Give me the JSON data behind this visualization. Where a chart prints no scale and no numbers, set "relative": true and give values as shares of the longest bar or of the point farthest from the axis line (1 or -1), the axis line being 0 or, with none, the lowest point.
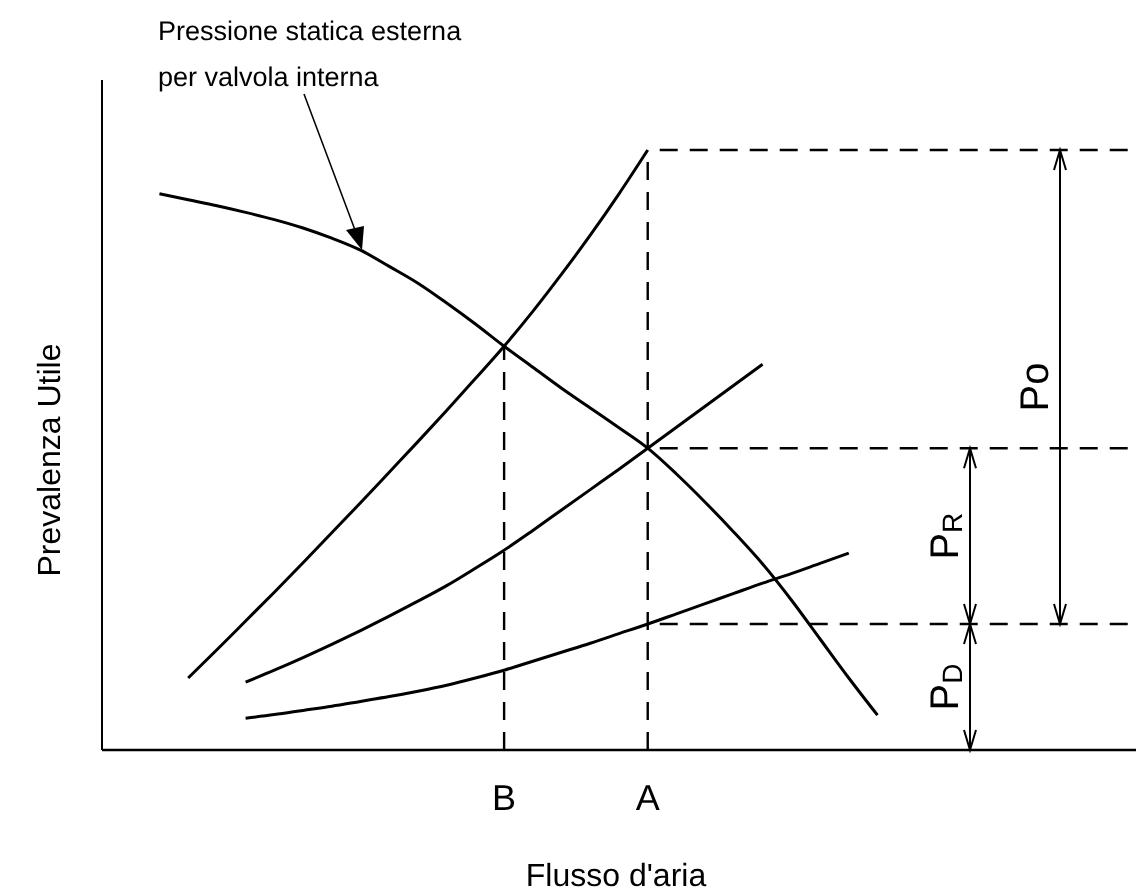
{
  "chart_data": {
    "type": "line",
    "relative": true,
    "xlabel": "Flusso d'aria",
    "ylabel": "Prevalenza Utile",
    "categories": [
      null,
      null,
      null,
      null,
      null,
      null,
      null,
      null,
      null,
      null,
      null,
      null,
      null,
      null,
      "B",
      null,
      null,
      null,
      null,
      "A",
      null,
      null,
      null,
      null,
      null,
      null,
      null,
      null,
      null,
      null,
      null,
      null,
      null,
      null,
      null,
      null,
      null
    ],
    "series": [
      {
        "color": "#000000",
        "values": [
          null,
          null,
          null,
          0.12,
          0.167,
          0.215,
          0.263,
          0.312,
          0.362,
          0.412,
          0.463,
          0.514,
          0.566,
          0.619,
          0.673,
          0.731,
          0.793,
          0.858,
          0.927,
          1.0,
          null,
          null,
          null,
          null,
          null,
          null,
          null,
          null,
          null,
          null,
          null,
          null,
          null,
          null,
          null,
          null,
          null
        ]
      },
      {
        "color": "#000000",
        "values": [
          null,
          null,
          null,
          null,
          null,
          0.113,
          0.133,
          0.154,
          0.176,
          0.199,
          0.223,
          0.248,
          0.274,
          0.303,
          0.333,
          0.366,
          0.4,
          0.434,
          0.468,
          0.503,
          0.538,
          0.573,
          0.608,
          0.643,
          null,
          null,
          null,
          null,
          null,
          null,
          null,
          null,
          null,
          null,
          null,
          null,
          null
        ]
      },
      {
        "color": "#000000",
        "values": [
          null,
          null,
          null,
          null,
          null,
          0.053,
          0.059,
          0.066,
          0.073,
          0.081,
          0.089,
          0.098,
          0.108,
          0.12,
          0.133,
          0.148,
          0.163,
          0.178,
          0.194,
          0.21,
          0.227,
          0.244,
          0.261,
          0.278,
          0.294,
          0.311,
          0.328,
          null,
          null,
          null,
          null,
          null,
          null,
          null,
          null,
          null,
          null
        ]
      },
      {
        "color": "#000000",
        "values": [
          null,
          null,
          0.927,
          0.917,
          0.907,
          0.896,
          0.884,
          0.87,
          0.853,
          0.833,
          0.806,
          0.778,
          0.745,
          0.71,
          0.673,
          0.638,
          0.603,
          0.57,
          0.537,
          0.503,
          0.46,
          0.413,
          0.363,
          0.31,
          0.25,
          0.185,
          0.12,
          0.058,
          null,
          null,
          null,
          null,
          null,
          null,
          null,
          null,
          null
        ]
      }
    ],
    "ref_lines": [
      {
        "axis": "x",
        "value": "B",
        "line_style": "dashed"
      },
      {
        "axis": "x",
        "value": "A",
        "line_style": "dashed"
      },
      {
        "axis": "y",
        "value": 1.0,
        "line_style": "dashed"
      },
      {
        "axis": "y",
        "value": 0.503,
        "line_style": "dashed"
      },
      {
        "axis": "y",
        "value": 0.21,
        "line_style": "dashed"
      }
    ],
    "annotations": [
      "Pressione statica esterna\nper valvola interna",
      "P$_{D}$",
      "P$_{R}$",
      "Po"
    ],
    "grid": false,
    "marker": "none",
    "line_style": "solid"
  }
}
